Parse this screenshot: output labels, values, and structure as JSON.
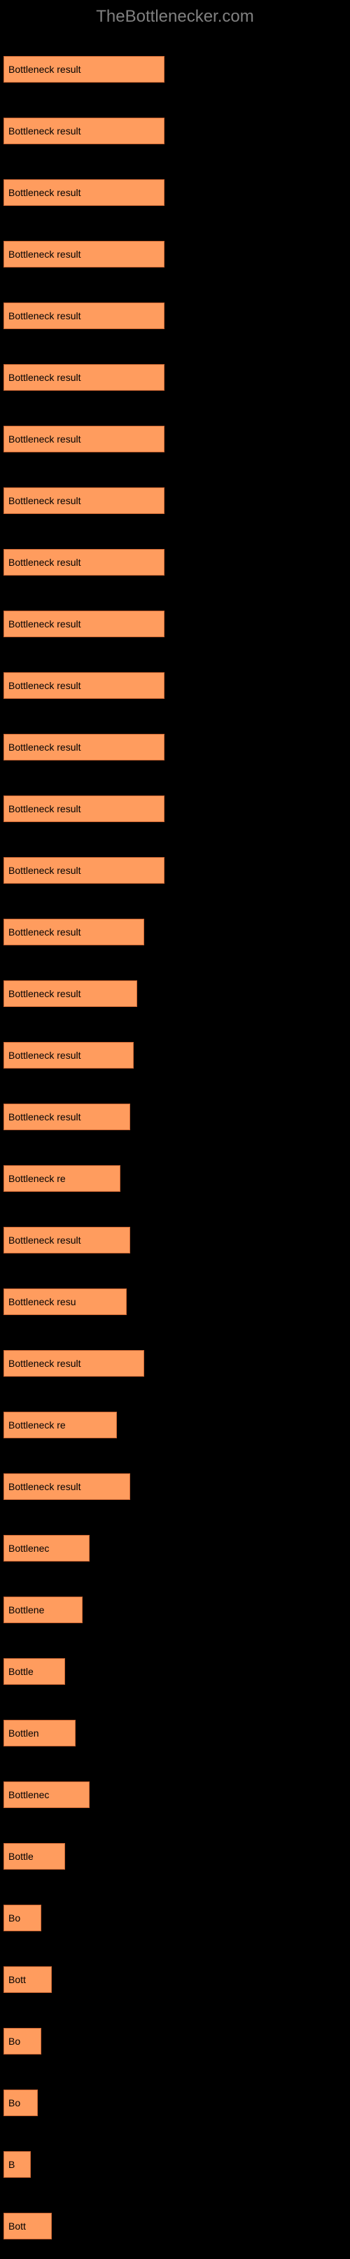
{
  "header": {
    "title": "TheBottlenecker.com"
  },
  "chart": {
    "type": "bar",
    "bar_color": "#ff9c5e",
    "bar_border_color": "#cc6633",
    "background_color": "#000000",
    "text_color": "#000000",
    "label_color": "#ffffff",
    "max_width_pct": 100,
    "bars": [
      {
        "label": "",
        "text": "Bottleneck result",
        "width_pct": 47
      },
      {
        "label": "",
        "text": "Bottleneck result",
        "width_pct": 47
      },
      {
        "label": "",
        "text": "Bottleneck result",
        "width_pct": 47
      },
      {
        "label": "",
        "text": "Bottleneck result",
        "width_pct": 47
      },
      {
        "label": "",
        "text": "Bottleneck result",
        "width_pct": 47
      },
      {
        "label": "",
        "text": "Bottleneck result",
        "width_pct": 47
      },
      {
        "label": "",
        "text": "Bottleneck result",
        "width_pct": 47
      },
      {
        "label": "",
        "text": "Bottleneck result",
        "width_pct": 47
      },
      {
        "label": "",
        "text": "Bottleneck result",
        "width_pct": 47
      },
      {
        "label": "",
        "text": "Bottleneck result",
        "width_pct": 47
      },
      {
        "label": "",
        "text": "Bottleneck result",
        "width_pct": 47
      },
      {
        "label": "",
        "text": "Bottleneck result",
        "width_pct": 47
      },
      {
        "label": "",
        "text": "Bottleneck result",
        "width_pct": 47
      },
      {
        "label": "",
        "text": "Bottleneck result",
        "width_pct": 47
      },
      {
        "label": "",
        "text": "Bottleneck result",
        "width_pct": 41
      },
      {
        "label": "",
        "text": "Bottleneck result",
        "width_pct": 39
      },
      {
        "label": "",
        "text": "Bottleneck result",
        "width_pct": 38
      },
      {
        "label": "",
        "text": "Bottleneck result",
        "width_pct": 37
      },
      {
        "label": "",
        "text": "Bottleneck re",
        "width_pct": 34
      },
      {
        "label": "",
        "text": "Bottleneck result",
        "width_pct": 37
      },
      {
        "label": "",
        "text": "Bottleneck resu",
        "width_pct": 36
      },
      {
        "label": "",
        "text": "Bottleneck result",
        "width_pct": 41
      },
      {
        "label": "",
        "text": "Bottleneck re",
        "width_pct": 33
      },
      {
        "label": "",
        "text": "Bottleneck result",
        "width_pct": 37
      },
      {
        "label": "",
        "text": "Bottlenec",
        "width_pct": 25
      },
      {
        "label": "",
        "text": "Bottlene",
        "width_pct": 23
      },
      {
        "label": "",
        "text": "Bottle",
        "width_pct": 18
      },
      {
        "label": "",
        "text": "Bottlen",
        "width_pct": 21
      },
      {
        "label": "",
        "text": "Bottlenec",
        "width_pct": 25
      },
      {
        "label": "",
        "text": "Bottle",
        "width_pct": 18
      },
      {
        "label": "",
        "text": "Bo",
        "width_pct": 11
      },
      {
        "label": "",
        "text": "Bott",
        "width_pct": 14
      },
      {
        "label": "",
        "text": "Bo",
        "width_pct": 11
      },
      {
        "label": "",
        "text": "Bo",
        "width_pct": 10
      },
      {
        "label": "",
        "text": "B",
        "width_pct": 8
      },
      {
        "label": "",
        "text": "Bott",
        "width_pct": 14
      }
    ]
  }
}
